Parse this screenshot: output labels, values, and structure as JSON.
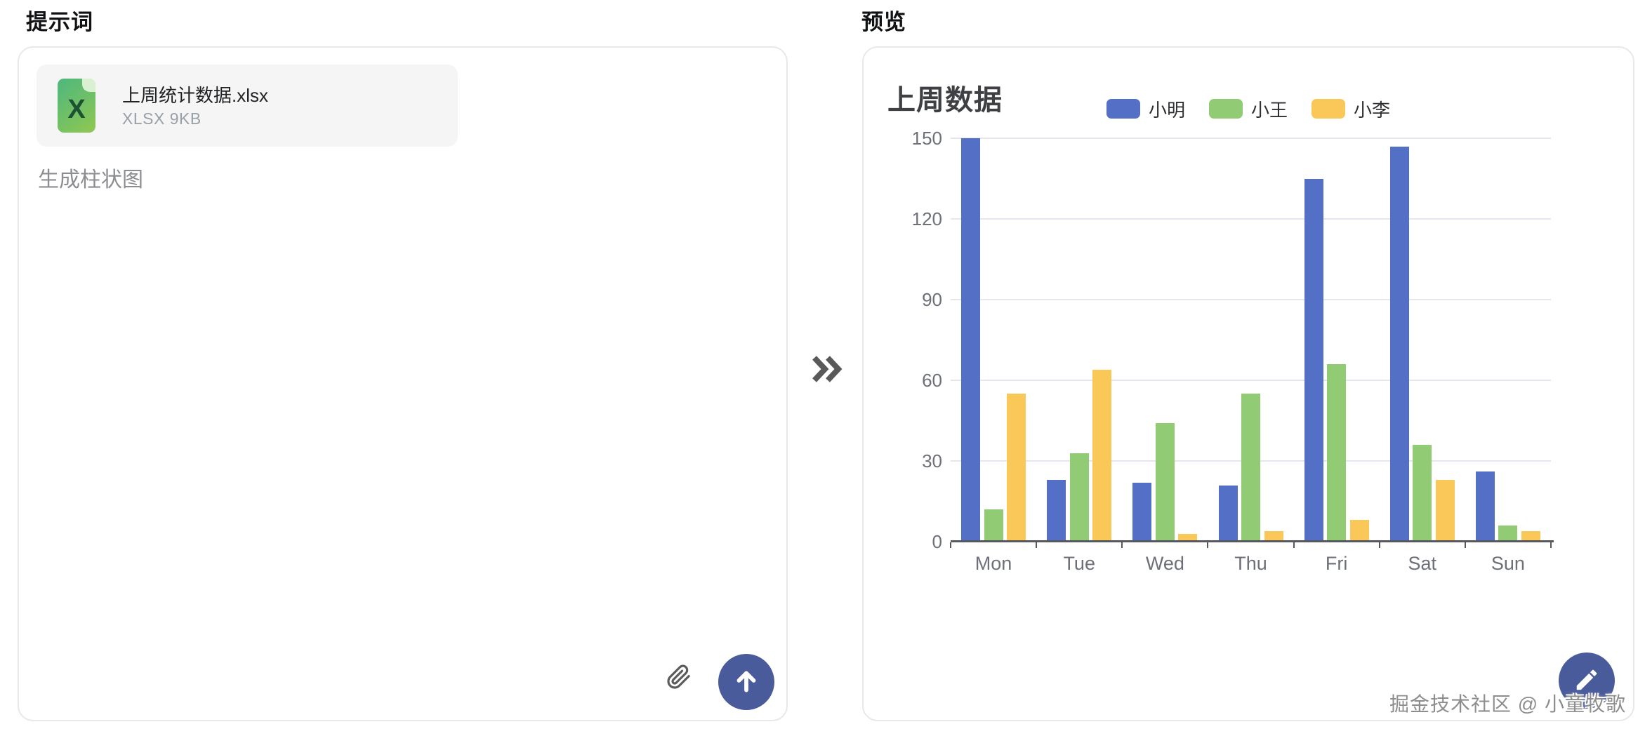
{
  "page": {
    "left_title": "提示词",
    "right_title": "预览"
  },
  "prompt_panel": {
    "file": {
      "badge_letter": "X",
      "name": "上周统计数据.xlsx",
      "meta": "XLSX 9KB"
    },
    "prompt_text": "生成柱状图"
  },
  "preview_panel": {
    "watermark": "掘金技术社区 @ 小童牧歌"
  },
  "chart_data": {
    "type": "bar",
    "title": "上周数据",
    "categories": [
      "Mon",
      "Tue",
      "Wed",
      "Thu",
      "Fri",
      "Sat",
      "Sun"
    ],
    "series": [
      {
        "name": "小明",
        "color": "#5470c6",
        "values": [
          150,
          23,
          22,
          21,
          135,
          147,
          26
        ]
      },
      {
        "name": "小王",
        "color": "#91cc75",
        "values": [
          12,
          33,
          44,
          55,
          66,
          36,
          6
        ]
      },
      {
        "name": "小李",
        "color": "#fac858",
        "values": [
          55,
          64,
          3,
          4,
          8,
          23,
          4
        ]
      }
    ],
    "ylim": [
      0,
      150
    ],
    "ytick_step": 30,
    "grid": true,
    "legend_position": "top-center",
    "xlabel": "",
    "ylabel": ""
  },
  "colors": {
    "accent_button": "#4a5b9c",
    "axis_label": "#6e7079",
    "grid_line": "#e4e7ee",
    "axis_line": "#56585e",
    "file_icon_green_start": "#4db77e",
    "file_icon_green_end": "#90c851"
  }
}
